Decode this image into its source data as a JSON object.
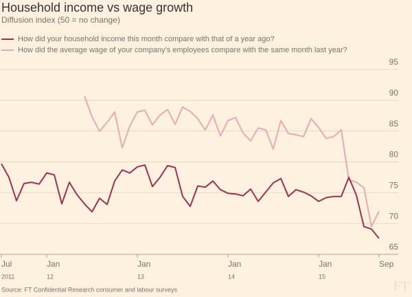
{
  "chart_data": {
    "type": "line",
    "title": "Household income vs wage growth",
    "subtitle": "Diffusion index (50 = no change)",
    "source": "Source: FT Confidential Research consumer and labour surveys",
    "logo": "FT",
    "x": [
      "2011-07",
      "2011-08",
      "2011-09",
      "2011-10",
      "2011-11",
      "2011-12",
      "2012-01",
      "2012-02",
      "2012-03",
      "2012-04",
      "2012-05",
      "2012-06",
      "2012-07",
      "2012-08",
      "2012-09",
      "2012-10",
      "2012-11",
      "2012-12",
      "2013-01",
      "2013-02",
      "2013-03",
      "2013-04",
      "2013-05",
      "2013-06",
      "2013-07",
      "2013-08",
      "2013-09",
      "2013-10",
      "2013-11",
      "2013-12",
      "2014-01",
      "2014-02",
      "2014-03",
      "2014-04",
      "2014-05",
      "2014-06",
      "2014-07",
      "2014-08",
      "2014-09",
      "2014-10",
      "2014-11",
      "2014-12",
      "2015-01",
      "2015-02",
      "2015-03",
      "2015-04",
      "2015-05",
      "2015-06",
      "2015-07",
      "2015-08",
      "2015-09"
    ],
    "xticks": [
      {
        "value": "2011-07",
        "label": "Jul",
        "sublabel": "2011"
      },
      {
        "value": "2012-01",
        "label": "Jan",
        "sublabel": "12"
      },
      {
        "value": "2013-01",
        "label": "Jan",
        "sublabel": "13"
      },
      {
        "value": "2014-01",
        "label": "Jan",
        "sublabel": "14"
      },
      {
        "value": "2015-01",
        "label": "Jan",
        "sublabel": "15"
      },
      {
        "value": "2015-09",
        "label": "Sep"
      }
    ],
    "ylim": [
      65,
      95
    ],
    "yticks": [
      65,
      70,
      75,
      80,
      85,
      90,
      95
    ],
    "grid": true,
    "series": [
      {
        "name": "How did your household income this month compare with that of a year ago?",
        "color": "#9e2f50",
        "values": [
          79.7,
          77.5,
          73.7,
          76.5,
          76.7,
          76.4,
          78.2,
          77.9,
          73.2,
          76.7,
          74.7,
          73.2,
          71.9,
          74.1,
          73.1,
          76.9,
          78.7,
          78.2,
          79.2,
          79.5,
          76.0,
          77.5,
          79.4,
          79.1,
          74.4,
          72.8,
          76.1,
          75.9,
          76.9,
          75.5,
          74.9,
          74.8,
          74.5,
          75.6,
          73.6,
          75.1,
          76.6,
          77.3,
          74.4,
          75.5,
          75.1,
          74.5,
          73.6,
          74.2,
          74.4,
          74.4,
          77.5,
          74.6,
          69.5,
          69.1,
          67.6
        ]
      },
      {
        "name": "How did the average wage of your company's employees compare with the same month last year?",
        "color": "#e8a8b4",
        "values": [
          null,
          null,
          null,
          null,
          null,
          null,
          null,
          null,
          null,
          null,
          null,
          90.7,
          87.3,
          85.0,
          86.4,
          88.1,
          82.3,
          85.8,
          88.1,
          88.4,
          86.0,
          87.6,
          88.5,
          86.1,
          88.9,
          88.2,
          87.0,
          85.2,
          87.6,
          84.2,
          86.7,
          87.2,
          84.7,
          83.4,
          85.5,
          85.2,
          82.1,
          86.7,
          84.6,
          84.4,
          84.1,
          87.0,
          85.6,
          83.8,
          84.1,
          85.2,
          77.1,
          76.7,
          75.8,
          69.5,
          72.0
        ]
      }
    ]
  }
}
